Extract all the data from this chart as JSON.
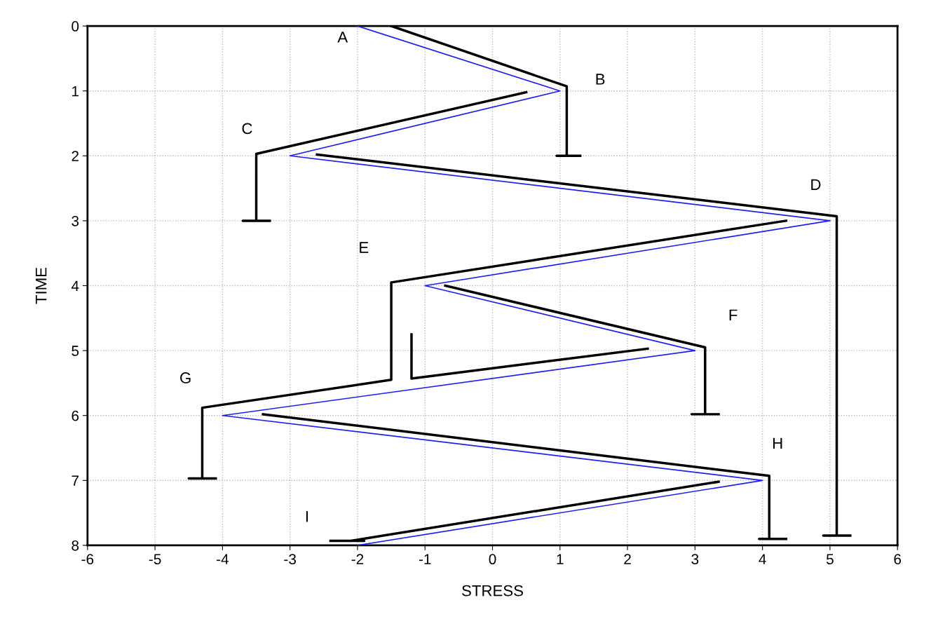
{
  "chart_data": {
    "type": "line",
    "xlabel": "STRESS",
    "ylabel": "TIME",
    "xlim": [
      -6,
      6
    ],
    "xticks": [
      -6,
      -5,
      -4,
      -3,
      -2,
      -1,
      0,
      1,
      2,
      3,
      4,
      5,
      6
    ],
    "ylim": [
      8,
      0
    ],
    "yticks": [
      0,
      1,
      2,
      3,
      4,
      5,
      6,
      7,
      8
    ],
    "grid": true,
    "marker": "none",
    "line_style": "solid",
    "series": [
      {
        "color": "#2020f0",
        "x": [
          -2,
          1,
          -3,
          5,
          -1,
          3,
          -4,
          4,
          -2
        ],
        "values": [
          0,
          1,
          2,
          3,
          4,
          5,
          6,
          7,
          8
        ]
      },
      {
        "color": "#000000",
        "x": [
          -1.5,
          1.1,
          1.1,
          0.95,
          1.3
        ],
        "values": [
          0,
          0.93,
          2.0,
          2.0,
          2.0
        ]
      },
      {
        "color": "#000000",
        "x": [
          0.5,
          -3.5,
          -3.5,
          -3.7,
          -3.3
        ],
        "values": [
          1.02,
          1.97,
          3.0,
          3.0,
          3.0
        ]
      },
      {
        "color": "#000000",
        "x": [
          -2.6,
          5.1,
          5.1,
          4.9,
          5.3
        ],
        "values": [
          1.98,
          2.93,
          7.85,
          7.85,
          7.85
        ]
      },
      {
        "color": "#000000",
        "x": [
          4.35,
          -1.5,
          -1.5,
          -4.3,
          -4.3,
          -4.5,
          -4.1
        ],
        "values": [
          3.0,
          3.95,
          5.45,
          5.88,
          6.97,
          6.97,
          6.97
        ]
      },
      {
        "color": "#000000",
        "x": [
          -0.7,
          3.15,
          3.15,
          2.95,
          3.35
        ],
        "values": [
          4.0,
          4.95,
          5.98,
          5.98,
          5.98
        ]
      },
      {
        "color": "#000000",
        "x": [
          2.3,
          -1.2,
          -1.2
        ],
        "values": [
          4.97,
          5.43,
          4.75
        ]
      },
      {
        "color": "#000000",
        "x": [
          -3.4,
          4.1,
          4.1,
          3.95,
          4.35
        ],
        "values": [
          5.98,
          6.93,
          7.9,
          7.9,
          7.9
        ]
      },
      {
        "color": "#000000",
        "x": [
          3.35,
          -2.1,
          -1.9,
          -2.4
        ],
        "values": [
          7.02,
          7.93,
          7.93,
          7.93
        ]
      }
    ],
    "annotations": [
      "A",
      "B",
      "C",
      "D",
      "E",
      "F",
      "G",
      "H",
      "I"
    ]
  }
}
